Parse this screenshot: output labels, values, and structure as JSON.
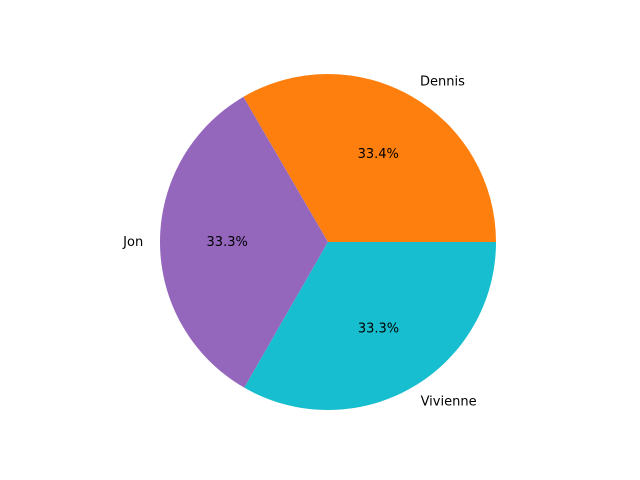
{
  "chart_data": {
    "type": "pie",
    "title": "",
    "categories": [
      "Dennis",
      "Jon",
      "Vivienne"
    ],
    "values": [
      33.4,
      33.3,
      33.3
    ],
    "percent_labels": [
      "33.4%",
      "33.3%",
      "33.3%"
    ],
    "colors": [
      "#ff7f0e",
      "#9467bd",
      "#17becf"
    ],
    "start_angle_deg": 0,
    "direction": "counterclockwise",
    "legend": "none"
  }
}
